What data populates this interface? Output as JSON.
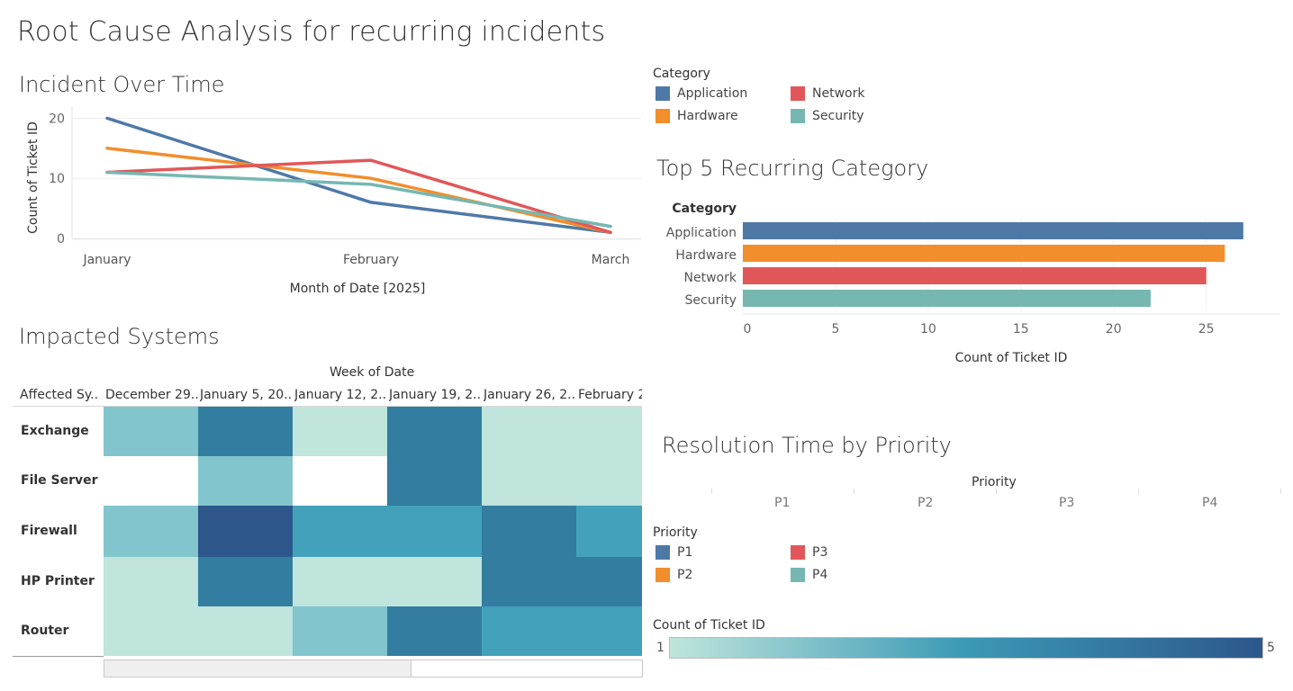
{
  "dashboard": {
    "title": "Root Cause Analysis for recurring incidents"
  },
  "colors": {
    "application": "#4e79a7",
    "hardware": "#f28e2b",
    "network": "#e15759",
    "security": "#76b7b2",
    "heat_scale": [
      "#bfe5dc",
      "#82c5cd",
      "#43a1bb",
      "#337da0",
      "#2d578b"
    ]
  },
  "line_chart": {
    "title": "Incident Over Time",
    "chart_data": {
      "type": "line",
      "x": [
        "January",
        "February",
        "March"
      ],
      "xlabel": "Month of Date [2025]",
      "ylabel": "Count of Ticket ID",
      "yticks": [
        "0",
        "10",
        "20"
      ],
      "ylim": [
        0,
        22
      ],
      "grid": true,
      "series": [
        {
          "name": "Application",
          "values": [
            20,
            6,
            1
          ]
        },
        {
          "name": "Hardware",
          "values": [
            15,
            10,
            1
          ]
        },
        {
          "name": "Network",
          "values": [
            11,
            13,
            1
          ]
        },
        {
          "name": "Security",
          "values": [
            11,
            9,
            2
          ]
        }
      ]
    }
  },
  "category_legend": {
    "title": "Category",
    "items": [
      {
        "label": "Application",
        "color": "#4e79a7"
      },
      {
        "label": "Network",
        "color": "#e15759"
      },
      {
        "label": "Hardware",
        "color": "#f28e2b"
      },
      {
        "label": "Security",
        "color": "#76b7b2"
      }
    ]
  },
  "bar_chart": {
    "title": "Top 5 Recurring Category",
    "chart_data": {
      "type": "bar",
      "orientation": "horizontal",
      "header": "Category",
      "categories": [
        "Application",
        "Hardware",
        "Network",
        "Security"
      ],
      "values": [
        27,
        26,
        25,
        22
      ],
      "colors": [
        "#4e79a7",
        "#f28e2b",
        "#e15759",
        "#76b7b2"
      ],
      "xlabel": "Count of Ticket ID",
      "xticks": [
        "0",
        "5",
        "10",
        "15",
        "20",
        "25"
      ],
      "xlim": [
        0,
        29
      ]
    }
  },
  "heatmap": {
    "title": "Impacted Systems",
    "chart_data": {
      "type": "heatmap",
      "column_header": "Week of Date",
      "row_header": "Affected Sy..",
      "columns": [
        "December 29..",
        "January 5, 20..",
        "January 12, 2..",
        "January 19, 2..",
        "January 26, 2..",
        "February 2"
      ],
      "rows": [
        "Exchange",
        "File Server",
        "Firewall",
        "HP Printer",
        "Router"
      ],
      "values": [
        [
          2,
          4,
          1,
          4,
          1,
          1
        ],
        [
          null,
          2,
          null,
          4,
          1,
          1
        ],
        [
          2,
          5,
          3,
          3,
          4,
          3
        ],
        [
          1,
          4,
          1,
          1,
          4,
          4
        ],
        [
          1,
          1,
          2,
          4,
          3,
          3
        ]
      ]
    }
  },
  "resolution": {
    "title": "Resolution Time by Priority",
    "header": "Priority",
    "columns": [
      "P1",
      "P2",
      "P3",
      "P4"
    ]
  },
  "priority_legend": {
    "title": "Priority",
    "items": [
      {
        "label": "P1",
        "color": "#4e79a7"
      },
      {
        "label": "P3",
        "color": "#e15759"
      },
      {
        "label": "P2",
        "color": "#f28e2b"
      },
      {
        "label": "P4",
        "color": "#76b7b2"
      }
    ]
  },
  "color_legend": {
    "title": "Count of Ticket ID",
    "min": "1",
    "max": "5"
  }
}
